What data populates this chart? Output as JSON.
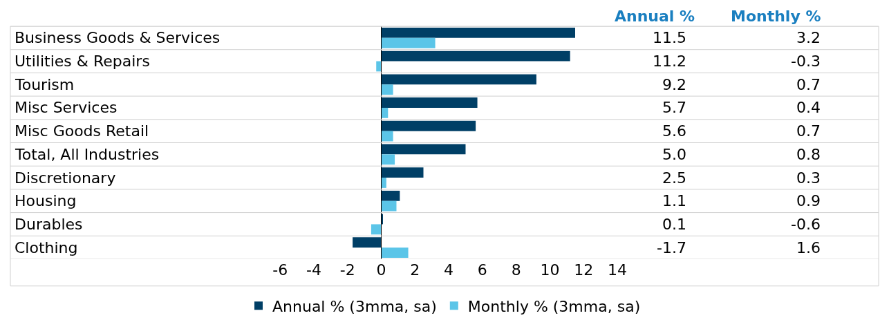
{
  "chart_data": {
    "type": "bar",
    "orientation": "horizontal",
    "categories": [
      "Business Goods & Services",
      "Utilities & Repairs",
      "Tourism",
      "Misc Services",
      "Misc Goods Retail",
      "Total, All Industries",
      "Discretionary",
      "Housing",
      "Durables",
      "Clothing"
    ],
    "series": [
      {
        "name": "Annual % (3mma, sa)",
        "color": "#003f66",
        "values": [
          11.5,
          11.2,
          9.2,
          5.7,
          5.6,
          5.0,
          2.5,
          1.1,
          0.1,
          -1.7
        ],
        "value_labels": [
          "11.5",
          "11.2",
          "9.2",
          "5.7",
          "5.6",
          "5.0",
          "2.5",
          "1.1",
          "0.1",
          "-1.7"
        ]
      },
      {
        "name": "Monthly % (3mma, sa)",
        "color": "#5bc5e8",
        "values": [
          3.2,
          -0.3,
          0.7,
          0.4,
          0.7,
          0.8,
          0.3,
          0.9,
          -0.6,
          1.6
        ],
        "value_labels": [
          "3.2",
          "-0.3",
          "0.7",
          "0.4",
          "0.7",
          "0.8",
          "0.3",
          "0.9",
          "-0.6",
          "1.6"
        ]
      }
    ],
    "annotations": [
      "Annual %",
      "Monthly %"
    ],
    "xlim": [
      -22,
      29.5
    ],
    "xticks": [
      -6,
      -4,
      -2,
      0,
      2,
      4,
      6,
      8,
      10,
      12,
      14
    ],
    "legend": "bottom"
  }
}
